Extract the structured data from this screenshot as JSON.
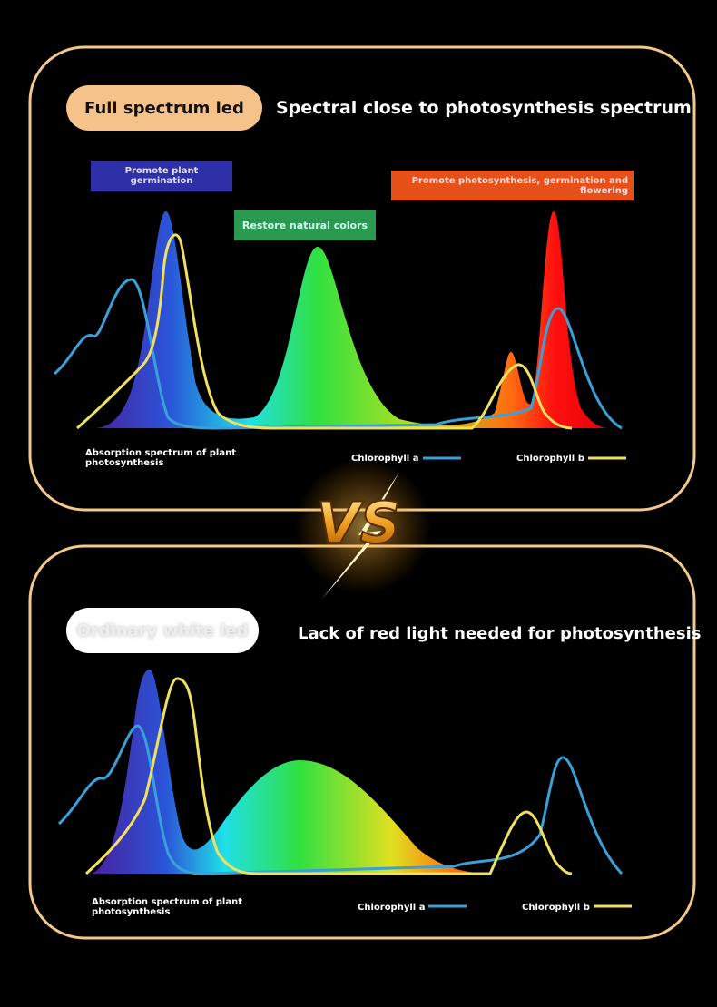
{
  "panels": [
    {
      "badge": "Full spectrum led",
      "heading": "Spectral close to photosynthesis spectrum",
      "labels": [
        "Promote plant germination",
        "Restore natural colors",
        "Promote photosynthesis, germination and flowering"
      ],
      "legend": {
        "absorption": "Absorption spectrum of plant photosynthesis",
        "chlorophyll_a": "Chlorophyll a",
        "chlorophyll_b": "Chlorophyll b"
      }
    },
    {
      "badge": "Ordinary white led",
      "heading": "Lack of red light needed for photosynthesis",
      "legend": {
        "absorption": "Absorption spectrum of plant photosynthesis",
        "chlorophyll_a": "Chlorophyll a",
        "chlorophyll_b": "Chlorophyll b"
      }
    }
  ],
  "vs": "VS"
}
